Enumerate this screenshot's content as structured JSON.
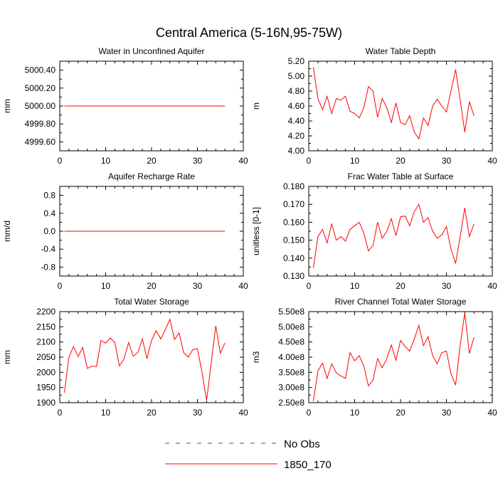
{
  "figure_title": "Central America (5-16N,95-75W)",
  "legend": [
    {
      "label": "No Obs",
      "color": "#4a4ad0",
      "dash": true
    },
    {
      "label": "1850_170",
      "color": "#ff0000",
      "dash": false
    }
  ],
  "chart_data": [
    {
      "type": "line",
      "title": "Water in Unconfined Aquifer",
      "ylabel": "mm",
      "xlim": [
        0,
        40
      ],
      "xticks": [
        0,
        10,
        20,
        30,
        40
      ],
      "ylim": [
        4999.5,
        5000.5
      ],
      "yticks": [
        4999.6,
        4999.8,
        5000.0,
        5000.2,
        5000.4
      ],
      "ytick_labels": [
        "4999.60",
        "4999.80",
        "5000.00",
        "5000.20",
        "5000.40"
      ],
      "series": [
        {
          "name": "1850_170",
          "color": "#ff0000",
          "x": [
            1,
            2,
            3,
            4,
            5,
            6,
            7,
            8,
            9,
            10,
            11,
            12,
            13,
            14,
            15,
            16,
            17,
            18,
            19,
            20,
            21,
            22,
            23,
            24,
            25,
            26,
            27,
            28,
            29,
            30,
            31,
            32,
            33,
            34,
            35,
            36
          ],
          "values": [
            5000,
            5000,
            5000,
            5000,
            5000,
            5000,
            5000,
            5000,
            5000,
            5000,
            5000,
            5000,
            5000,
            5000,
            5000,
            5000,
            5000,
            5000,
            5000,
            5000,
            5000,
            5000,
            5000,
            5000,
            5000,
            5000,
            5000,
            5000,
            5000,
            5000,
            5000,
            5000,
            5000,
            5000,
            5000,
            5000
          ]
        }
      ]
    },
    {
      "type": "line",
      "title": "Water Table Depth",
      "ylabel": "m",
      "xlim": [
        0,
        40
      ],
      "xticks": [
        0,
        10,
        20,
        30,
        40
      ],
      "ylim": [
        4.0,
        5.2
      ],
      "yticks": [
        4.0,
        4.2,
        4.4,
        4.6,
        4.8,
        5.0,
        5.2
      ],
      "ytick_labels": [
        "4.00",
        "4.20",
        "4.40",
        "4.60",
        "4.80",
        "5.00",
        "5.20"
      ],
      "series": [
        {
          "name": "1850_170",
          "color": "#ff0000",
          "x": [
            1,
            2,
            3,
            4,
            5,
            6,
            7,
            8,
            9,
            10,
            11,
            12,
            13,
            14,
            15,
            16,
            17,
            18,
            19,
            20,
            21,
            22,
            23,
            24,
            25,
            26,
            27,
            28,
            29,
            30,
            31,
            32,
            33,
            34,
            35,
            36
          ],
          "values": [
            5.12,
            4.7,
            4.55,
            4.73,
            4.5,
            4.7,
            4.68,
            4.73,
            4.53,
            4.5,
            4.44,
            4.58,
            4.86,
            4.8,
            4.45,
            4.7,
            4.58,
            4.38,
            4.64,
            4.38,
            4.35,
            4.47,
            4.25,
            4.16,
            4.44,
            4.34,
            4.6,
            4.69,
            4.6,
            4.52,
            4.8,
            5.09,
            4.68,
            4.25,
            4.66,
            4.47
          ]
        }
      ]
    },
    {
      "type": "line",
      "title": "Aquifer Recharge Rate",
      "ylabel": "mm/d",
      "xlim": [
        0,
        40
      ],
      "xticks": [
        0,
        10,
        20,
        30,
        40
      ],
      "ylim": [
        -1.0,
        1.0
      ],
      "yticks": [
        -0.8,
        -0.4,
        0.0,
        0.4,
        0.8
      ],
      "ytick_labels": [
        "-0.8",
        "-0.4",
        "0.0",
        "0.4",
        "0.8"
      ],
      "series": [
        {
          "name": "1850_170",
          "color": "#ff0000",
          "x": [
            1,
            2,
            3,
            4,
            5,
            6,
            7,
            8,
            9,
            10,
            11,
            12,
            13,
            14,
            15,
            16,
            17,
            18,
            19,
            20,
            21,
            22,
            23,
            24,
            25,
            26,
            27,
            28,
            29,
            30,
            31,
            32,
            33,
            34,
            35,
            36
          ],
          "values": [
            0,
            0,
            0,
            0,
            0,
            0,
            0,
            0,
            0,
            0,
            0,
            0,
            0,
            0,
            0,
            0,
            0,
            0,
            0,
            0,
            0,
            0,
            0,
            0,
            0,
            0,
            0,
            0,
            0,
            0,
            0,
            0,
            0,
            0,
            0,
            0
          ]
        }
      ]
    },
    {
      "type": "line",
      "title": "Frac Water Table at Surface",
      "ylabel": "unitless [0-1]",
      "xlim": [
        0,
        40
      ],
      "xticks": [
        0,
        10,
        20,
        30,
        40
      ],
      "ylim": [
        0.13,
        0.18
      ],
      "yticks": [
        0.13,
        0.14,
        0.15,
        0.16,
        0.17,
        0.18
      ],
      "ytick_labels": [
        "0.130",
        "0.140",
        "0.150",
        "0.160",
        "0.170",
        "0.180"
      ],
      "series": [
        {
          "name": "1850_170",
          "color": "#ff0000",
          "x": [
            1,
            2,
            3,
            4,
            5,
            6,
            7,
            8,
            9,
            10,
            11,
            12,
            13,
            14,
            15,
            16,
            17,
            18,
            19,
            20,
            21,
            22,
            23,
            24,
            25,
            26,
            27,
            28,
            29,
            30,
            31,
            32,
            33,
            34,
            35,
            36
          ],
          "values": [
            0.1345,
            0.152,
            0.156,
            0.1485,
            0.159,
            0.15,
            0.152,
            0.1495,
            0.156,
            0.158,
            0.16,
            0.154,
            0.144,
            0.147,
            0.16,
            0.151,
            0.155,
            0.162,
            0.1525,
            0.163,
            0.1635,
            0.158,
            0.166,
            0.17,
            0.16,
            0.1625,
            0.155,
            0.151,
            0.153,
            0.1575,
            0.145,
            0.137,
            0.152,
            0.168,
            0.152,
            0.159
          ]
        }
      ]
    },
    {
      "type": "line",
      "title": "Total Water Storage",
      "ylabel": "mm",
      "xlim": [
        0,
        40
      ],
      "xticks": [
        0,
        10,
        20,
        30,
        40
      ],
      "ylim": [
        1900,
        2200
      ],
      "yticks": [
        1900,
        1950,
        2000,
        2050,
        2100,
        2150,
        2200
      ],
      "ytick_labels": [
        "1900",
        "1950",
        "2000",
        "2050",
        "2100",
        "2150",
        "2200"
      ],
      "series": [
        {
          "name": "1850_170",
          "color": "#ff0000",
          "x": [
            1,
            2,
            3,
            4,
            5,
            6,
            7,
            8,
            9,
            10,
            11,
            12,
            13,
            14,
            15,
            16,
            17,
            18,
            19,
            20,
            21,
            22,
            23,
            24,
            25,
            26,
            27,
            28,
            29,
            30,
            31,
            32,
            33,
            34,
            35,
            36
          ],
          "values": [
            1933,
            2050,
            2085,
            2052,
            2082,
            2013,
            2020,
            2019,
            2105,
            2096,
            2113,
            2098,
            2021,
            2044,
            2098,
            2053,
            2065,
            2110,
            2045,
            2105,
            2137,
            2110,
            2140,
            2175,
            2108,
            2130,
            2065,
            2050,
            2075,
            2078,
            2000,
            1908,
            2030,
            2153,
            2063,
            2097
          ]
        }
      ]
    },
    {
      "type": "line",
      "title": "River Channel Total Water Storage",
      "ylabel": "m3",
      "xlim": [
        0,
        40
      ],
      "xticks": [
        0,
        10,
        20,
        30,
        40
      ],
      "ylim": [
        250000000.0,
        550000000.0
      ],
      "yticks": [
        250000000.0,
        300000000.0,
        350000000.0,
        400000000.0,
        450000000.0,
        500000000.0,
        550000000.0
      ],
      "ytick_labels": [
        "2.50e8",
        "3.00e8",
        "3.50e8",
        "4.00e8",
        "4.50e8",
        "5.00e8",
        "5.50e8"
      ],
      "series": [
        {
          "name": "1850_170",
          "color": "#ff0000",
          "x": [
            1,
            2,
            3,
            4,
            5,
            6,
            7,
            8,
            9,
            10,
            11,
            12,
            13,
            14,
            15,
            16,
            17,
            18,
            19,
            20,
            21,
            22,
            23,
            24,
            25,
            26,
            27,
            28,
            29,
            30,
            31,
            32,
            33,
            34,
            35,
            36
          ],
          "values": [
            255000000.0,
            355000000.0,
            380000000.0,
            330000000.0,
            378000000.0,
            348000000.0,
            338000000.0,
            330000000.0,
            415000000.0,
            388000000.0,
            405000000.0,
            370000000.0,
            305000000.0,
            325000000.0,
            395000000.0,
            365000000.0,
            395000000.0,
            440000000.0,
            390000000.0,
            455000000.0,
            435000000.0,
            420000000.0,
            460000000.0,
            505000000.0,
            438000000.0,
            468000000.0,
            405000000.0,
            378000000.0,
            415000000.0,
            420000000.0,
            345000000.0,
            308000000.0,
            440000000.0,
            545000000.0,
            412000000.0,
            465000000.0
          ]
        }
      ]
    }
  ]
}
